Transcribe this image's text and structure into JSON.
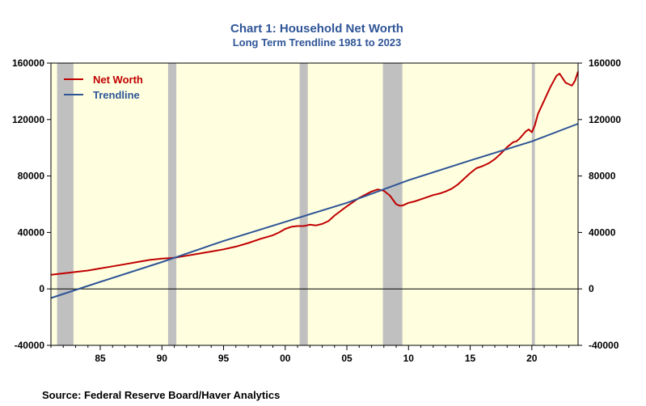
{
  "chart_data": {
    "type": "line",
    "title": "Chart 1: Household Net Worth",
    "subtitle": "Long Term Trendline 1981 to 2023",
    "source": "Source:  Federal Reserve Board/Haver Analytics",
    "xlim": [
      1981.0,
      2023.75
    ],
    "ylim": [
      -40000,
      160000
    ],
    "y_ticks": [
      -40000,
      0,
      40000,
      80000,
      120000,
      160000
    ],
    "y_tick_labels": [
      "-40000",
      "0",
      "40000",
      "80000",
      "120000",
      "160000"
    ],
    "x_ticks": [
      1985,
      1990,
      1995,
      2000,
      2005,
      2010,
      2015,
      2020
    ],
    "x_tick_labels": [
      "85",
      "90",
      "95",
      "00",
      "05",
      "10",
      "15",
      "20"
    ],
    "right_axis": true,
    "grid": false,
    "plot_background": "#ffffe0",
    "recessions": [
      [
        1981.5,
        1982.83
      ],
      [
        1990.5,
        1991.17
      ],
      [
        2001.17,
        2001.83
      ],
      [
        2007.92,
        2009.5
      ],
      [
        2020.0,
        2020.25
      ]
    ],
    "recession_color": "#c0c0c0",
    "legend_position": "top-left",
    "series": [
      {
        "name": "Net Worth",
        "color": "#c00000",
        "x": [
          1981.0,
          1982.0,
          1983.0,
          1984.0,
          1985.0,
          1986.0,
          1987.0,
          1988.0,
          1989.0,
          1990.0,
          1991.0,
          1992.0,
          1993.0,
          1994.0,
          1995.0,
          1996.0,
          1997.0,
          1998.0,
          1999.0,
          1999.5,
          2000.0,
          2000.5,
          2001.0,
          2001.5,
          2002.0,
          2002.5,
          2003.0,
          2003.5,
          2004.0,
          2005.0,
          2006.0,
          2007.0,
          2007.5,
          2008.0,
          2008.5,
          2009.0,
          2009.25,
          2009.5,
          2010.0,
          2010.5,
          2011.0,
          2011.5,
          2012.0,
          2012.5,
          2013.0,
          2013.5,
          2014.0,
          2014.5,
          2015.0,
          2015.5,
          2016.0,
          2016.5,
          2017.0,
          2017.5,
          2018.0,
          2018.5,
          2018.75,
          2019.0,
          2019.5,
          2019.75,
          2020.0,
          2020.25,
          2020.5,
          2021.0,
          2021.5,
          2022.0,
          2022.25,
          2022.75,
          2023.25,
          2023.5,
          2023.75
        ],
        "values": [
          10000,
          11000,
          12000,
          13000,
          14500,
          16000,
          17500,
          19000,
          20500,
          21500,
          22000,
          23500,
          25000,
          26500,
          28000,
          30000,
          32500,
          35500,
          38000,
          40000,
          42500,
          44000,
          44500,
          44500,
          45500,
          45000,
          46000,
          48000,
          52000,
          58500,
          64500,
          69000,
          70500,
          69500,
          66000,
          60000,
          59000,
          59000,
          61000,
          62000,
          63500,
          65000,
          66500,
          67500,
          69000,
          71000,
          74000,
          78000,
          82000,
          85500,
          87000,
          89000,
          92000,
          96000,
          100500,
          104000,
          104500,
          106500,
          111500,
          113000,
          111000,
          116000,
          124000,
          133500,
          143000,
          151000,
          152500,
          146000,
          144000,
          147500,
          154000
        ]
      },
      {
        "name": "Trendline",
        "color": "#2f5597",
        "x": [
          1981.0,
          1985.0,
          1990.0,
          1995.0,
          2000.0,
          2005.0,
          2010.0,
          2015.0,
          2020.0,
          2023.75
        ],
        "values": [
          -6500,
          5000,
          19000,
          34000,
          47500,
          61000,
          77000,
          91000,
          104500,
          117000
        ]
      }
    ]
  }
}
